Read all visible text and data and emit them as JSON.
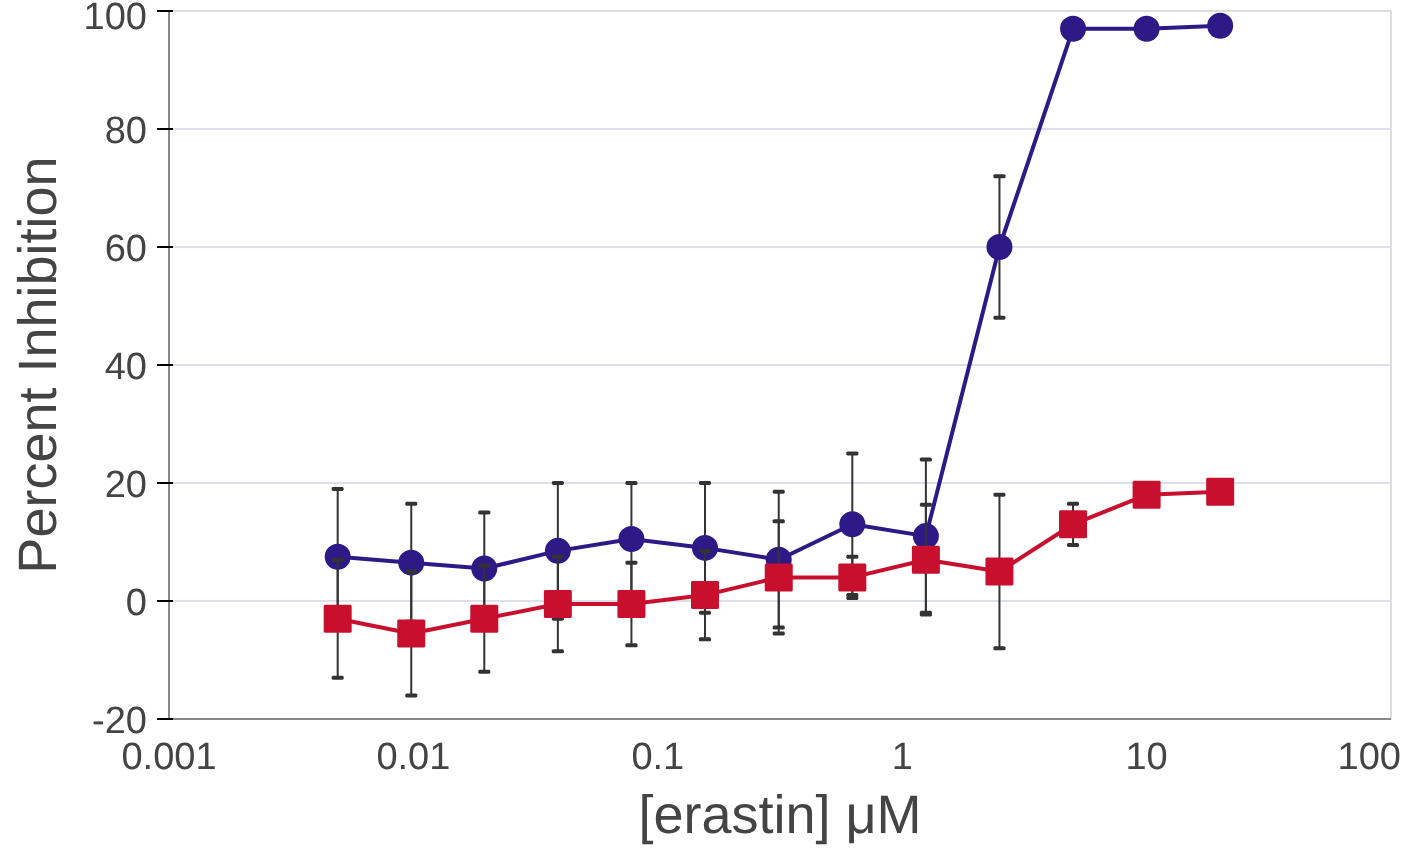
{
  "chart_data": {
    "type": "line",
    "xlabel": "[erastin] μM",
    "ylabel": "Percent Inhibition",
    "log": "x",
    "grid": "y",
    "x": [
      0.0049,
      0.0098,
      0.0195,
      0.039,
      0.078,
      0.156,
      0.3125,
      0.625,
      1.25,
      2.5,
      5,
      10,
      20
    ],
    "xlim": [
      0.001,
      100
    ],
    "xticks": [
      0.001,
      0.01,
      0.1,
      1,
      10,
      100
    ],
    "ylim": [
      -20,
      100
    ],
    "yticks": [
      -20,
      0,
      20,
      40,
      60,
      80,
      100
    ],
    "series": [
      {
        "color": "#2e1a87",
        "marker": "circle",
        "values": [
          7.5,
          6.5,
          5.5,
          8.5,
          10.5,
          9,
          7,
          13,
          11,
          60,
          97,
          97,
          97.5
        ],
        "errors": [
          11.5,
          10,
          9.5,
          11.5,
          9.5,
          11,
          11.5,
          12,
          13,
          12,
          null,
          null,
          null
        ]
      },
      {
        "color": "#c8102e",
        "marker": "square",
        "values": [
          -3,
          -5.5,
          -3,
          -0.5,
          -0.5,
          1,
          4,
          4,
          7,
          5,
          13,
          18,
          18.5
        ],
        "errors": [
          10,
          10.5,
          9,
          8,
          7,
          7.5,
          9.5,
          3.5,
          9.3,
          13,
          3.5,
          null,
          null
        ]
      }
    ]
  }
}
